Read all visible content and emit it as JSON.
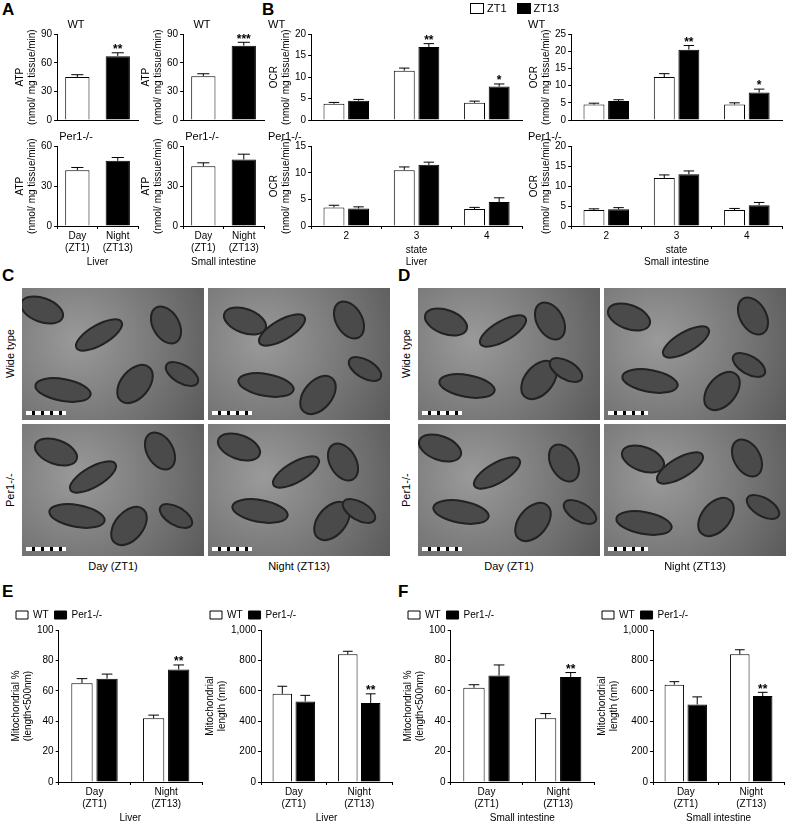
{
  "panel_labels": [
    "A",
    "B",
    "C",
    "D",
    "E",
    "F"
  ],
  "chart_data": [
    {
      "type": "bar",
      "title": "WT",
      "categories": [
        "Day (ZT1)",
        "Night (ZT13)"
      ],
      "values": [
        45,
        67
      ],
      "errors": [
        2.5,
        3.5
      ],
      "colors": [
        "#ffffff",
        "#000000"
      ],
      "ylabel": [
        "ATP",
        "(nmol/ mg tissue/min)"
      ],
      "ylim": [
        0,
        90
      ],
      "yticks": [
        0,
        30,
        60,
        90
      ],
      "grid": false,
      "tick_labels": "y",
      "annotations": [
        {
          "text": "**",
          "category": 1
        }
      ]
    },
    {
      "type": "bar",
      "title": "WT",
      "categories": [
        "Day (ZT1)",
        "Night (ZT13)"
      ],
      "values": [
        46,
        78
      ],
      "errors": [
        2.5,
        3.5
      ],
      "colors": [
        "#ffffff",
        "#000000"
      ],
      "ylabel": [
        "ATP",
        "(nmol/ mg tissue/min)"
      ],
      "ylim": [
        0,
        90
      ],
      "yticks": [
        0,
        30,
        60,
        90
      ],
      "grid": false,
      "tick_labels": "y",
      "annotations": [
        {
          "text": "***",
          "category": 1
        }
      ]
    },
    {
      "type": "bar",
      "title": "Per1-/-",
      "categories": [
        "Day (ZT1)",
        "Night (ZT13)"
      ],
      "values": [
        42,
        49
      ],
      "errors": [
        2,
        2.5
      ],
      "colors": [
        "#ffffff",
        "#000000"
      ],
      "ylabel": [
        "ATP",
        "(nmol/ mg tissue/min)"
      ],
      "xlabel": "Liver",
      "ylim": [
        0,
        60
      ],
      "yticks": [
        0,
        30,
        60
      ],
      "grid": false
    },
    {
      "type": "bar",
      "title": "Per1-/-",
      "categories": [
        "Day (ZT1)",
        "Night (ZT13)"
      ],
      "values": [
        45,
        50
      ],
      "errors": [
        2.5,
        4
      ],
      "colors": [
        "#ffffff",
        "#000000"
      ],
      "ylabel": [
        "ATP",
        "(nmol/ mg tissue/min)"
      ],
      "xlabel": "Small intestine",
      "ylim": [
        0,
        60
      ],
      "yticks": [
        0,
        30,
        60
      ],
      "grid": false
    },
    {
      "type": "bar",
      "title": "WT",
      "categories": [
        "2",
        "3",
        "4"
      ],
      "series": [
        {
          "name": "ZT1",
          "color": "#ffffff",
          "values": [
            3.8,
            11.5,
            4
          ],
          "errors": [
            0.3,
            0.6,
            0.4
          ]
        },
        {
          "name": "ZT13",
          "color": "#000000",
          "values": [
            4.5,
            17,
            7.8
          ],
          "errors": [
            0.3,
            0.8,
            0.6
          ]
        }
      ],
      "ylabel": [
        "OCR",
        "(nmol/ mg tissue/min)"
      ],
      "ylim": [
        0,
        20
      ],
      "yticks": [
        0,
        5,
        10,
        15,
        20
      ],
      "grid": false,
      "tick_labels": "y",
      "legend": "top",
      "annotations": [
        {
          "text": "**",
          "category": 1,
          "series": "ZT13"
        },
        {
          "text": "*",
          "category": 2,
          "series": "ZT13"
        }
      ]
    },
    {
      "type": "bar",
      "title": "WT",
      "categories": [
        "2",
        "3",
        "4"
      ],
      "series": [
        {
          "name": "ZT1",
          "color": "#ffffff",
          "values": [
            4.5,
            12.5,
            4.5
          ],
          "errors": [
            0.4,
            1,
            0.5
          ]
        },
        {
          "name": "ZT13",
          "color": "#000000",
          "values": [
            5.5,
            20.5,
            8
          ],
          "errors": [
            0.4,
            1.2,
            1
          ]
        }
      ],
      "ylabel": [
        "OCR",
        "(nmol/ mg tissue/min)"
      ],
      "ylim": [
        0,
        25
      ],
      "yticks": [
        0,
        5,
        10,
        15,
        20,
        25
      ],
      "grid": false,
      "tick_labels": "y",
      "annotations": [
        {
          "text": "**",
          "category": 1,
          "series": "ZT13"
        },
        {
          "text": "*",
          "category": 2,
          "series": "ZT13"
        }
      ]
    },
    {
      "type": "bar",
      "title": "Per1-/-",
      "categories": [
        "2",
        "3",
        "4"
      ],
      "series": [
        {
          "name": "ZT1",
          "color": "#ffffff",
          "values": [
            3.5,
            10.5,
            3.2
          ],
          "errors": [
            0.4,
            0.6,
            0.3
          ]
        },
        {
          "name": "ZT13",
          "color": "#000000",
          "values": [
            3.3,
            11.5,
            4.5
          ],
          "errors": [
            0.3,
            0.5,
            0.8
          ]
        }
      ],
      "ylabel": [
        "OCR",
        "(nmol/ mg tissue/min)"
      ],
      "xlabel": [
        "state",
        "Liver"
      ],
      "ylim": [
        0,
        15
      ],
      "yticks": [
        0,
        5,
        10,
        15
      ],
      "grid": false
    },
    {
      "type": "bar",
      "title": "Per1-/-",
      "categories": [
        "2",
        "3",
        "4"
      ],
      "series": [
        {
          "name": "ZT1",
          "color": "#ffffff",
          "values": [
            4,
            12,
            4
          ],
          "errors": [
            0.3,
            0.8,
            0.4
          ]
        },
        {
          "name": "ZT13",
          "color": "#000000",
          "values": [
            4.2,
            13,
            5.2
          ],
          "errors": [
            0.4,
            0.8,
            0.7
          ]
        }
      ],
      "ylabel": [
        "OCR",
        "(nmol/ mg tissue/min)"
      ],
      "xlabel": [
        "state",
        "Small intestine"
      ],
      "ylim": [
        0,
        20
      ],
      "yticks": [
        0,
        5,
        10,
        15,
        20
      ],
      "grid": false
    },
    {
      "type": "bar",
      "categories": [
        "Day (ZT1)",
        "Night (ZT13)"
      ],
      "series": [
        {
          "name": "WT",
          "color": "#ffffff",
          "values": [
            65,
            42
          ],
          "errors": [
            3,
            2
          ]
        },
        {
          "name": "Per1-/-",
          "color": "#000000",
          "values": [
            68,
            74
          ],
          "errors": [
            3,
            3
          ]
        }
      ],
      "ylabel": [
        "Mitochondrial %",
        "(length<500nm)"
      ],
      "xlabel": "Liver",
      "ylim": [
        0,
        100
      ],
      "yticks": [
        0,
        20,
        40,
        60,
        80,
        100
      ],
      "grid": false,
      "legend": "top left",
      "annotations": [
        {
          "text": "**",
          "category": 1,
          "series": "Per1-/-"
        }
      ]
    },
    {
      "type": "bar",
      "categories": [
        "Day (ZT1)",
        "Night (ZT13)"
      ],
      "series": [
        {
          "name": "WT",
          "color": "#ffffff",
          "values": [
            580,
            840
          ],
          "errors": [
            50,
            20
          ]
        },
        {
          "name": "Per1-/-",
          "color": "#000000",
          "values": [
            530,
            520
          ],
          "errors": [
            40,
            60
          ]
        }
      ],
      "ylabel": [
        "Mitochondrial",
        "length (nm)"
      ],
      "xlabel": "Liver",
      "ylim": [
        0,
        1000
      ],
      "yticks": [
        0,
        200,
        400,
        600,
        800,
        1000
      ],
      "grid": false,
      "legend": "top left",
      "annotations": [
        {
          "text": "**",
          "category": 1,
          "series": "Per1-/-"
        }
      ]
    },
    {
      "type": "bar",
      "categories": [
        "Day (ZT1)",
        "Night (ZT13)"
      ],
      "series": [
        {
          "name": "WT",
          "color": "#ffffff",
          "values": [
            62,
            42
          ],
          "errors": [
            2,
            3
          ]
        },
        {
          "name": "Per1-/-",
          "color": "#000000",
          "values": [
            70,
            69
          ],
          "errors": [
            7,
            3
          ]
        }
      ],
      "ylabel": [
        "Mitochondrial %",
        "(length<500nm)"
      ],
      "xlabel": "Small intestine",
      "ylim": [
        0,
        100
      ],
      "yticks": [
        0,
        20,
        40,
        60,
        80,
        100
      ],
      "grid": false,
      "legend": "top left",
      "annotations": [
        {
          "text": "**",
          "category": 1,
          "series": "Per1-/-"
        }
      ]
    },
    {
      "type": "bar",
      "categories": [
        "Day (ZT1)",
        "Night (ZT13)"
      ],
      "series": [
        {
          "name": "WT",
          "color": "#ffffff",
          "values": [
            640,
            840
          ],
          "errors": [
            20,
            30
          ]
        },
        {
          "name": "Per1-/-",
          "color": "#000000",
          "values": [
            510,
            565
          ],
          "errors": [
            50,
            25
          ]
        }
      ],
      "ylabel": [
        "Mitochondrial",
        "length (nm)"
      ],
      "xlabel": "Small intestine",
      "ylim": [
        0,
        1000
      ],
      "yticks": [
        0,
        200,
        400,
        600,
        800,
        1000
      ],
      "grid": false,
      "legend": "top left",
      "annotations": [
        {
          "text": "**",
          "category": 1,
          "series": "Per1-/-"
        }
      ]
    }
  ],
  "images": [
    {
      "panel": "C",
      "row_labels": [
        "Wide type",
        "Per1-/-"
      ],
      "column_labels": [
        "Day (ZT1)",
        "Night (ZT13)"
      ]
    },
    {
      "panel": "D",
      "row_labels": [
        "Wide type",
        "Per1-/-"
      ],
      "column_labels": [
        "Day (ZT1)",
        "Night (ZT13)"
      ]
    }
  ]
}
